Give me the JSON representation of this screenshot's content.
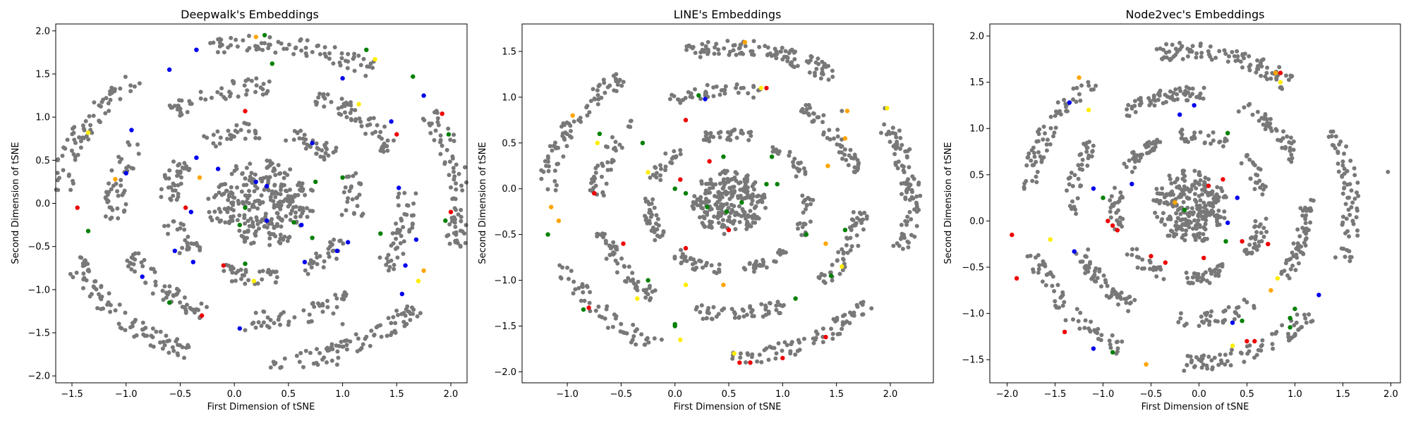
{
  "chart_data": [
    {
      "type": "scatter",
      "title": "Deepwalk's Embeddings",
      "xlabel": "First Dimension of tSNE",
      "ylabel": "Second Dimension of tSNE",
      "xlim": [
        -1.65,
        2.15
      ],
      "ylim": [
        -2.08,
        2.08
      ],
      "xticks": [
        -1.5,
        -1.0,
        -0.5,
        0.0,
        0.5,
        1.0,
        1.5,
        2.0
      ],
      "yticks": [
        -2.0,
        -1.5,
        -1.0,
        -0.5,
        0.0,
        0.5,
        1.0,
        1.5,
        2.0
      ],
      "grid": false,
      "point_color": "#787878",
      "highlight_colors": {
        "blue": "#0000ee",
        "green": "#008000",
        "red": "#ee0000",
        "yellow": "#ffee00",
        "orange": "#ffa500"
      },
      "shape": {
        "center": [
          0.25,
          0.0
        ],
        "radii": [
          [
            1.75,
            1.95
          ],
          [
            1.25,
            1.45
          ],
          [
            0.75,
            0.95
          ],
          [
            0.3,
            0.5
          ]
        ],
        "outliers": [
          [
            0.95,
            -1.87
          ],
          [
            1.0,
            -1.4
          ],
          [
            0.1,
            -1.47
          ]
        ]
      },
      "highlights": [
        {
          "x": -0.35,
          "y": 1.78,
          "color": "blue"
        },
        {
          "x": 0.2,
          "y": 1.93,
          "color": "orange"
        },
        {
          "x": 0.28,
          "y": 1.95,
          "color": "green"
        },
        {
          "x": 0.35,
          "y": 1.62,
          "color": "green"
        },
        {
          "x": 1.3,
          "y": 1.67,
          "color": "yellow"
        },
        {
          "x": 1.22,
          "y": 1.78,
          "color": "green"
        },
        {
          "x": 1.0,
          "y": 1.45,
          "color": "blue"
        },
        {
          "x": 1.65,
          "y": 1.47,
          "color": "green"
        },
        {
          "x": 1.75,
          "y": 1.25,
          "color": "blue"
        },
        {
          "x": 1.92,
          "y": 1.04,
          "color": "red"
        },
        {
          "x": 1.98,
          "y": 0.8,
          "color": "green"
        },
        {
          "x": -0.6,
          "y": 1.55,
          "color": "blue"
        },
        {
          "x": -1.35,
          "y": 0.82,
          "color": "yellow"
        },
        {
          "x": -0.95,
          "y": 0.85,
          "color": "blue"
        },
        {
          "x": 0.1,
          "y": 1.07,
          "color": "red"
        },
        {
          "x": 1.15,
          "y": 1.15,
          "color": "yellow"
        },
        {
          "x": 1.45,
          "y": 0.95,
          "color": "blue"
        },
        {
          "x": 1.5,
          "y": 0.8,
          "color": "red"
        },
        {
          "x": -0.35,
          "y": 0.53,
          "color": "blue"
        },
        {
          "x": -0.32,
          "y": 0.3,
          "color": "orange"
        },
        {
          "x": -0.15,
          "y": 0.4,
          "color": "blue"
        },
        {
          "x": 0.2,
          "y": 0.25,
          "color": "blue"
        },
        {
          "x": 0.3,
          "y": 0.2,
          "color": "blue"
        },
        {
          "x": 0.72,
          "y": 0.7,
          "color": "blue"
        },
        {
          "x": 1.0,
          "y": 0.3,
          "color": "green"
        },
        {
          "x": 0.75,
          "y": 0.25,
          "color": "green"
        },
        {
          "x": 1.52,
          "y": 0.18,
          "color": "blue"
        },
        {
          "x": -1.1,
          "y": 0.28,
          "color": "orange"
        },
        {
          "x": -1.0,
          "y": 0.35,
          "color": "blue"
        },
        {
          "x": -0.45,
          "y": -0.05,
          "color": "red"
        },
        {
          "x": -0.4,
          "y": -0.1,
          "color": "blue"
        },
        {
          "x": 0.1,
          "y": -0.05,
          "color": "green"
        },
        {
          "x": 0.3,
          "y": -0.2,
          "color": "blue"
        },
        {
          "x": 0.05,
          "y": -0.25,
          "color": "green"
        },
        {
          "x": 0.55,
          "y": -0.22,
          "color": "green"
        },
        {
          "x": 0.62,
          "y": -0.25,
          "color": "blue"
        },
        {
          "x": 0.72,
          "y": -0.4,
          "color": "green"
        },
        {
          "x": 1.35,
          "y": -0.35,
          "color": "green"
        },
        {
          "x": 2.0,
          "y": -0.1,
          "color": "red"
        },
        {
          "x": 1.95,
          "y": -0.2,
          "color": "green"
        },
        {
          "x": 1.68,
          "y": -0.42,
          "color": "blue"
        },
        {
          "x": -1.45,
          "y": -0.05,
          "color": "red"
        },
        {
          "x": -1.35,
          "y": -0.32,
          "color": "green"
        },
        {
          "x": -0.55,
          "y": -0.55,
          "color": "blue"
        },
        {
          "x": -0.38,
          "y": -0.68,
          "color": "blue"
        },
        {
          "x": -0.1,
          "y": -0.72,
          "color": "red"
        },
        {
          "x": 0.1,
          "y": -0.7,
          "color": "green"
        },
        {
          "x": 0.65,
          "y": -0.68,
          "color": "blue"
        },
        {
          "x": 0.95,
          "y": -0.55,
          "color": "blue"
        },
        {
          "x": 1.05,
          "y": -0.45,
          "color": "blue"
        },
        {
          "x": 1.58,
          "y": -0.72,
          "color": "blue"
        },
        {
          "x": 1.75,
          "y": -0.78,
          "color": "orange"
        },
        {
          "x": 1.7,
          "y": -0.9,
          "color": "yellow"
        },
        {
          "x": 1.55,
          "y": -1.05,
          "color": "blue"
        },
        {
          "x": -0.85,
          "y": -0.85,
          "color": "blue"
        },
        {
          "x": -0.6,
          "y": -1.15,
          "color": "green"
        },
        {
          "x": -0.3,
          "y": -1.3,
          "color": "red"
        },
        {
          "x": 0.18,
          "y": -0.9,
          "color": "yellow"
        },
        {
          "x": 0.05,
          "y": -1.45,
          "color": "blue"
        }
      ]
    },
    {
      "type": "scatter",
      "title": "LINE's Embeddings",
      "xlabel": "First Dimension of tSNE",
      "ylabel": "Second Dimension of tSNE",
      "xlim": [
        -1.42,
        2.4
      ],
      "ylim": [
        -2.12,
        1.8
      ],
      "xticks": [
        -1.0,
        -0.5,
        0.0,
        0.5,
        1.0,
        1.5,
        2.0
      ],
      "yticks": [
        -2.0,
        -1.5,
        -1.0,
        -0.5,
        0.0,
        0.5,
        1.0,
        1.5
      ],
      "grid": false,
      "point_color": "#787878",
      "highlight_colors": {
        "blue": "#0000ee",
        "green": "#008000",
        "red": "#ee0000",
        "yellow": "#ffee00",
        "orange": "#ffa500"
      },
      "shape": {
        "center": [
          0.5,
          -0.15
        ],
        "radii": [
          [
            1.6,
            1.78
          ],
          [
            1.15,
            1.3
          ],
          [
            0.68,
            0.8
          ],
          [
            0.25,
            0.35
          ]
        ],
        "outliers": [
          [
            1.95,
            0.88
          ],
          [
            1.55,
            0.85
          ]
        ]
      },
      "highlights": [
        {
          "x": 0.65,
          "y": 1.6,
          "color": "orange"
        },
        {
          "x": 0.8,
          "y": 1.1,
          "color": "yellow"
        },
        {
          "x": 0.85,
          "y": 1.1,
          "color": "red"
        },
        {
          "x": 1.97,
          "y": 0.88,
          "color": "yellow"
        },
        {
          "x": 1.6,
          "y": 0.85,
          "color": "orange"
        },
        {
          "x": 1.58,
          "y": 0.55,
          "color": "orange"
        },
        {
          "x": -0.95,
          "y": 0.8,
          "color": "orange"
        },
        {
          "x": -0.72,
          "y": 0.5,
          "color": "yellow"
        },
        {
          "x": -0.7,
          "y": 0.6,
          "color": "green"
        },
        {
          "x": -0.3,
          "y": 0.5,
          "color": "green"
        },
        {
          "x": -0.25,
          "y": 0.18,
          "color": "yellow"
        },
        {
          "x": 0.1,
          "y": 0.75,
          "color": "red"
        },
        {
          "x": 0.22,
          "y": 1.02,
          "color": "green"
        },
        {
          "x": 0.28,
          "y": 0.98,
          "color": "blue"
        },
        {
          "x": 0.32,
          "y": 0.3,
          "color": "red"
        },
        {
          "x": 0.45,
          "y": 0.35,
          "color": "green"
        },
        {
          "x": 0.05,
          "y": 0.1,
          "color": "red"
        },
        {
          "x": 0.0,
          "y": 0.0,
          "color": "green"
        },
        {
          "x": 0.1,
          "y": -0.05,
          "color": "green"
        },
        {
          "x": -0.75,
          "y": -0.05,
          "color": "red"
        },
        {
          "x": -1.15,
          "y": -0.2,
          "color": "orange"
        },
        {
          "x": -1.08,
          "y": -0.35,
          "color": "orange"
        },
        {
          "x": -1.18,
          "y": -0.5,
          "color": "green"
        },
        {
          "x": 0.85,
          "y": 0.05,
          "color": "green"
        },
        {
          "x": 0.9,
          "y": 0.35,
          "color": "green"
        },
        {
          "x": 0.95,
          "y": 0.05,
          "color": "green"
        },
        {
          "x": 1.42,
          "y": 0.25,
          "color": "orange"
        },
        {
          "x": 0.48,
          "y": -0.25,
          "color": "green"
        },
        {
          "x": 0.5,
          "y": -0.45,
          "color": "red"
        },
        {
          "x": 0.62,
          "y": -0.15,
          "color": "green"
        },
        {
          "x": 1.22,
          "y": -0.5,
          "color": "green"
        },
        {
          "x": 1.58,
          "y": -0.45,
          "color": "green"
        },
        {
          "x": 1.4,
          "y": -0.6,
          "color": "orange"
        },
        {
          "x": -0.48,
          "y": -0.6,
          "color": "red"
        },
        {
          "x": 0.1,
          "y": -0.65,
          "color": "red"
        },
        {
          "x": 0.3,
          "y": -0.2,
          "color": "green"
        },
        {
          "x": -0.25,
          "y": -1.0,
          "color": "green"
        },
        {
          "x": -0.35,
          "y": -1.2,
          "color": "yellow"
        },
        {
          "x": 0.1,
          "y": -1.05,
          "color": "yellow"
        },
        {
          "x": 0.45,
          "y": -1.05,
          "color": "orange"
        },
        {
          "x": 1.12,
          "y": -1.2,
          "color": "green"
        },
        {
          "x": 1.45,
          "y": -0.95,
          "color": "green"
        },
        {
          "x": 1.55,
          "y": -0.85,
          "color": "yellow"
        },
        {
          "x": -0.8,
          "y": -1.3,
          "color": "red"
        },
        {
          "x": -0.85,
          "y": -1.32,
          "color": "green"
        },
        {
          "x": 0.0,
          "y": -1.5,
          "color": "green"
        },
        {
          "x": 0.05,
          "y": -1.65,
          "color": "yellow"
        },
        {
          "x": 0.55,
          "y": -1.8,
          "color": "yellow"
        },
        {
          "x": 0.6,
          "y": -1.9,
          "color": "red"
        },
        {
          "x": 0.7,
          "y": -1.9,
          "color": "red"
        },
        {
          "x": 1.4,
          "y": -1.62,
          "color": "red"
        },
        {
          "x": 1.0,
          "y": -1.85,
          "color": "red"
        },
        {
          "x": 0.0,
          "y": -1.48,
          "color": "green"
        }
      ]
    },
    {
      "type": "scatter",
      "title": "Node2vec's Embeddings",
      "xlabel": "First Dimension of tSNE",
      "ylabel": "Second Dimension of tSNE",
      "xlim": [
        -2.18,
        2.1
      ],
      "ylim": [
        -1.75,
        2.13
      ],
      "xticks": [
        -2.0,
        -1.5,
        -1.0,
        -0.5,
        0.0,
        0.5,
        1.0,
        1.5,
        2.0
      ],
      "yticks": [
        -1.5,
        -1.0,
        -0.5,
        0.0,
        0.5,
        1.0,
        1.5,
        2.0
      ],
      "grid": false,
      "point_color": "#787878",
      "highlight_colors": {
        "blue": "#0000ee",
        "green": "#008000",
        "red": "#ee0000",
        "yellow": "#ffee00",
        "orange": "#ffa500"
      },
      "shape": {
        "center": [
          -0.1,
          0.15
        ],
        "radii": [
          [
            1.6,
            1.78
          ],
          [
            1.15,
            1.3
          ],
          [
            0.7,
            0.85
          ],
          [
            0.25,
            0.4
          ]
        ],
        "outliers": [
          [
            1.97,
            0.53
          ],
          [
            1.5,
            0.6
          ],
          [
            1.55,
            0.25
          ]
        ]
      },
      "highlights": [
        {
          "x": 0.8,
          "y": 1.6,
          "color": "orange"
        },
        {
          "x": 0.85,
          "y": 1.6,
          "color": "red"
        },
        {
          "x": 0.85,
          "y": 1.5,
          "color": "yellow"
        },
        {
          "x": -1.35,
          "y": 1.28,
          "color": "blue"
        },
        {
          "x": -1.15,
          "y": 1.2,
          "color": "yellow"
        },
        {
          "x": -1.25,
          "y": 1.55,
          "color": "orange"
        },
        {
          "x": -0.2,
          "y": 1.15,
          "color": "blue"
        },
        {
          "x": -0.05,
          "y": 1.25,
          "color": "blue"
        },
        {
          "x": 0.3,
          "y": 0.95,
          "color": "green"
        },
        {
          "x": -1.1,
          "y": 0.35,
          "color": "blue"
        },
        {
          "x": -1.0,
          "y": 0.25,
          "color": "green"
        },
        {
          "x": -0.7,
          "y": 0.4,
          "color": "blue"
        },
        {
          "x": 0.1,
          "y": 0.38,
          "color": "red"
        },
        {
          "x": 0.25,
          "y": 0.45,
          "color": "red"
        },
        {
          "x": 0.4,
          "y": 0.25,
          "color": "blue"
        },
        {
          "x": -0.25,
          "y": 0.2,
          "color": "orange"
        },
        {
          "x": -0.15,
          "y": 0.12,
          "color": "green"
        },
        {
          "x": 0.3,
          "y": -0.02,
          "color": "blue"
        },
        {
          "x": -0.95,
          "y": 0.0,
          "color": "red"
        },
        {
          "x": -0.9,
          "y": -0.05,
          "color": "red"
        },
        {
          "x": -0.85,
          "y": -0.1,
          "color": "red"
        },
        {
          "x": -1.95,
          "y": -0.15,
          "color": "red"
        },
        {
          "x": -1.55,
          "y": -0.2,
          "color": "yellow"
        },
        {
          "x": -1.3,
          "y": -0.33,
          "color": "blue"
        },
        {
          "x": -0.5,
          "y": -0.38,
          "color": "red"
        },
        {
          "x": -0.35,
          "y": -0.45,
          "color": "red"
        },
        {
          "x": 0.05,
          "y": -0.4,
          "color": "red"
        },
        {
          "x": 0.28,
          "y": -0.22,
          "color": "green"
        },
        {
          "x": 0.45,
          "y": -0.22,
          "color": "red"
        },
        {
          "x": 0.72,
          "y": -0.25,
          "color": "red"
        },
        {
          "x": 0.82,
          "y": -0.62,
          "color": "yellow"
        },
        {
          "x": 0.75,
          "y": -0.75,
          "color": "orange"
        },
        {
          "x": 1.0,
          "y": -0.95,
          "color": "green"
        },
        {
          "x": 0.95,
          "y": -1.05,
          "color": "green"
        },
        {
          "x": 0.95,
          "y": -1.15,
          "color": "green"
        },
        {
          "x": 1.25,
          "y": -0.8,
          "color": "blue"
        },
        {
          "x": -1.9,
          "y": -0.62,
          "color": "red"
        },
        {
          "x": -1.4,
          "y": -1.2,
          "color": "red"
        },
        {
          "x": -1.1,
          "y": -1.38,
          "color": "blue"
        },
        {
          "x": -0.9,
          "y": -1.42,
          "color": "green"
        },
        {
          "x": -0.55,
          "y": -1.55,
          "color": "orange"
        },
        {
          "x": 0.35,
          "y": -1.1,
          "color": "blue"
        },
        {
          "x": 0.45,
          "y": -1.08,
          "color": "green"
        },
        {
          "x": 0.35,
          "y": -1.35,
          "color": "yellow"
        },
        {
          "x": 0.5,
          "y": -1.3,
          "color": "red"
        },
        {
          "x": 0.58,
          "y": -1.3,
          "color": "red"
        }
      ]
    }
  ]
}
